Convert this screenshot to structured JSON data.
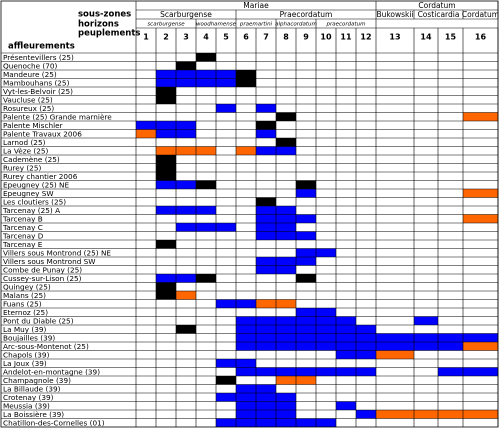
{
  "header": {
    "row_labels": [
      "sous-zones",
      "horizons",
      "peuplements"
    ],
    "column_label": "affleurements",
    "zones": [
      "Mariae",
      "Cordatum"
    ],
    "subzones": [
      "Scarburgense",
      "Praecordatum",
      "Bukowskii",
      "Costicardia",
      "Cordatum"
    ],
    "horizons": [
      "scarburgense",
      "woodhamense",
      "praemartini",
      "alphacordatum",
      "praecordatum"
    ],
    "columns": [
      "1",
      "2",
      "3",
      "4",
      "5",
      "6",
      "7",
      "8",
      "9",
      "10",
      "11",
      "12",
      "13",
      "14",
      "15",
      "16"
    ]
  },
  "table": {
    "rows": [
      {
        "label": "Présentevillers (25)",
        "cells": [
          null,
          null,
          null,
          "#000000",
          null,
          null,
          null,
          null,
          null,
          null,
          null,
          null,
          null,
          null,
          null,
          null
        ]
      },
      {
        "label": "Quenoche (70)",
        "cells": [
          null,
          null,
          "#000000",
          null,
          null,
          null,
          null,
          null,
          null,
          null,
          null,
          null,
          null,
          null,
          null,
          null
        ]
      },
      {
        "label": "Mandeure (25)",
        "cells": [
          null,
          "#0000ff",
          "#0000ff",
          "#0000ff",
          "#0000ff",
          "#000000",
          null,
          null,
          null,
          null,
          null,
          null,
          null,
          null,
          null,
          null
        ]
      },
      {
        "label": "Mambouhans (25)",
        "cells": [
          null,
          "#0000ff",
          "#0000ff",
          "#0000ff",
          "#0000ff",
          "#000000",
          null,
          null,
          null,
          null,
          null,
          null,
          null,
          null,
          null,
          null
        ]
      },
      {
        "label": "Vyt-les-Belvoir (25)",
        "cells": [
          null,
          "#000000",
          null,
          null,
          null,
          null,
          null,
          null,
          null,
          null,
          null,
          null,
          null,
          null,
          null,
          null
        ]
      },
      {
        "label": "Vaucluse (25)",
        "cells": [
          null,
          "#000000",
          null,
          null,
          null,
          null,
          null,
          null,
          null,
          null,
          null,
          null,
          null,
          null,
          null,
          null
        ]
      },
      {
        "label": "Rosureux (25)",
        "cells": [
          null,
          null,
          null,
          null,
          "#0000ff",
          null,
          "#0000ff",
          null,
          null,
          null,
          null,
          null,
          null,
          null,
          null,
          null
        ]
      },
      {
        "label": "Palente (25) Grande marnière",
        "cells": [
          null,
          null,
          null,
          null,
          null,
          null,
          null,
          "#000000",
          null,
          null,
          null,
          null,
          null,
          null,
          null,
          "#ff6600"
        ]
      },
      {
        "label": "Palente Mischler",
        "cells": [
          "#0000ff",
          "#0000ff",
          "#0000ff",
          null,
          null,
          null,
          "#000000",
          null,
          null,
          null,
          null,
          null,
          null,
          null,
          null,
          null
        ]
      },
      {
        "label": "Palente Travaux 2006",
        "cells": [
          "#ff6600",
          "#0000ff",
          "#0000ff",
          null,
          null,
          null,
          "#0000ff",
          null,
          null,
          null,
          null,
          null,
          null,
          null,
          null,
          null
        ]
      },
      {
        "label": "Larnod (25)",
        "cells": [
          null,
          null,
          null,
          null,
          null,
          null,
          null,
          "#000000",
          null,
          null,
          null,
          null,
          null,
          null,
          null,
          null
        ]
      },
      {
        "label": "La Vèze (25)",
        "cells": [
          null,
          "#ff6600",
          "#ff6600",
          "#ff6600",
          null,
          "#ff6600",
          "#0000ff",
          "#0000ff",
          null,
          null,
          null,
          null,
          null,
          null,
          null,
          null
        ]
      },
      {
        "label": "Cademène (25)",
        "cells": [
          null,
          "#000000",
          null,
          null,
          null,
          null,
          null,
          null,
          null,
          null,
          null,
          null,
          null,
          null,
          null,
          null
        ]
      },
      {
        "label": "Rurey (25)",
        "cells": [
          null,
          "#000000",
          null,
          null,
          null,
          null,
          null,
          null,
          null,
          null,
          null,
          null,
          null,
          null,
          null,
          null
        ]
      },
      {
        "label": "Rurey chantier 2006",
        "cells": [
          null,
          "#000000",
          null,
          null,
          null,
          null,
          null,
          null,
          null,
          null,
          null,
          null,
          null,
          null,
          null,
          null
        ]
      },
      {
        "label": "Epeugney (25) NE",
        "cells": [
          null,
          "#0000ff",
          "#0000ff",
          "#000000",
          null,
          null,
          null,
          null,
          "#000000",
          null,
          null,
          null,
          null,
          null,
          null,
          null
        ]
      },
      {
        "label": "Epeugney SW",
        "cells": [
          null,
          null,
          null,
          null,
          null,
          null,
          null,
          null,
          "#0000ff",
          null,
          null,
          null,
          null,
          null,
          null,
          "#ff6600"
        ]
      },
      {
        "label": "Les cloutiers (25)",
        "cells": [
          null,
          null,
          null,
          null,
          null,
          null,
          "#000000",
          null,
          null,
          null,
          null,
          null,
          null,
          null,
          null,
          null
        ]
      },
      {
        "label": "Tarcenay (25) A",
        "cells": [
          null,
          "#0000ff",
          "#0000ff",
          "#0000ff",
          null,
          null,
          "#0000ff",
          "#0000ff",
          null,
          null,
          null,
          null,
          null,
          null,
          null,
          null
        ]
      },
      {
        "label": "Tarcenay B",
        "cells": [
          null,
          null,
          null,
          null,
          null,
          null,
          "#0000ff",
          "#0000ff",
          "#0000ff",
          null,
          null,
          null,
          null,
          null,
          null,
          "#ff6600"
        ]
      },
      {
        "label": "Tarcenay C",
        "cells": [
          null,
          null,
          "#0000ff",
          "#0000ff",
          "#0000ff",
          null,
          "#0000ff",
          "#0000ff",
          null,
          null,
          null,
          null,
          null,
          null,
          null,
          null
        ]
      },
      {
        "label": "Tarcenay D",
        "cells": [
          null,
          null,
          null,
          null,
          null,
          null,
          "#0000ff",
          "#0000ff",
          "#0000ff",
          null,
          null,
          null,
          null,
          null,
          null,
          null
        ]
      },
      {
        "label": "Tarcenay E",
        "cells": [
          null,
          "#000000",
          null,
          null,
          null,
          null,
          null,
          null,
          null,
          null,
          null,
          null,
          null,
          null,
          null,
          null
        ]
      },
      {
        "label": "Villers sous Montrond (25) NE",
        "cells": [
          null,
          null,
          null,
          null,
          null,
          null,
          null,
          null,
          "#0000ff",
          "#0000ff",
          null,
          null,
          null,
          null,
          null,
          null
        ]
      },
      {
        "label": "Villers sous Montrond SW",
        "cells": [
          null,
          null,
          null,
          null,
          null,
          null,
          "#0000ff",
          "#0000ff",
          "#0000ff",
          null,
          null,
          null,
          null,
          null,
          null,
          null
        ]
      },
      {
        "label": "Combe de Punay (25)",
        "cells": [
          null,
          null,
          null,
          null,
          null,
          null,
          "#0000ff",
          "#0000ff",
          null,
          null,
          null,
          null,
          null,
          null,
          null,
          null
        ]
      },
      {
        "label": "Cussey-sur-Lison (25)",
        "cells": [
          null,
          "#0000ff",
          "#0000ff",
          "#000000",
          null,
          null,
          null,
          null,
          "#000000",
          null,
          null,
          null,
          null,
          null,
          null,
          null
        ]
      },
      {
        "label": "Quingey (25)",
        "cells": [
          null,
          "#000000",
          null,
          null,
          null,
          null,
          null,
          null,
          null,
          null,
          null,
          null,
          null,
          null,
          null,
          null
        ]
      },
      {
        "label": "Malans (25)",
        "cells": [
          null,
          "#000000",
          "#ff6600",
          null,
          null,
          null,
          null,
          null,
          null,
          null,
          null,
          null,
          null,
          null,
          null,
          null
        ]
      },
      {
        "label": "Fuans (25)",
        "cells": [
          null,
          null,
          null,
          null,
          "#0000ff",
          "#0000ff",
          "#ff6600",
          "#ff6600",
          null,
          null,
          null,
          null,
          null,
          null,
          null,
          null
        ]
      },
      {
        "label": "Eternoz (25)",
        "cells": [
          null,
          null,
          null,
          null,
          null,
          null,
          null,
          null,
          "#0000ff",
          "#0000ff",
          null,
          null,
          null,
          null,
          null,
          null
        ]
      },
      {
        "label": "Pont du Diable (25)",
        "cells": [
          null,
          null,
          null,
          null,
          null,
          "#0000ff",
          "#0000ff",
          "#0000ff",
          "#0000ff",
          "#0000ff",
          "#0000ff",
          null,
          null,
          "#0000ff",
          null,
          null
        ]
      },
      {
        "label": "La Muy (39)",
        "cells": [
          null,
          null,
          "#000000",
          null,
          null,
          "#0000ff",
          "#0000ff",
          "#0000ff",
          "#0000ff",
          "#0000ff",
          "#0000ff",
          "#0000ff",
          null,
          null,
          null,
          null
        ]
      },
      {
        "label": "Boujailles (39)",
        "cells": [
          null,
          null,
          null,
          null,
          null,
          "#0000ff",
          "#0000ff",
          "#0000ff",
          "#0000ff",
          "#0000ff",
          "#0000ff",
          "#0000ff",
          "#0000ff",
          "#0000ff",
          "#0000ff",
          "#0000ff"
        ]
      },
      {
        "label": "Arc-sous-Montenot (25)",
        "cells": [
          null,
          null,
          null,
          null,
          null,
          "#0000ff",
          "#0000ff",
          "#0000ff",
          "#0000ff",
          "#0000ff",
          "#0000ff",
          "#0000ff",
          "#0000ff",
          "#0000ff",
          "#0000ff",
          "#ff6600"
        ]
      },
      {
        "label": "Chapols (39)",
        "cells": [
          null,
          null,
          null,
          null,
          null,
          null,
          null,
          null,
          null,
          null,
          "#0000ff",
          "#0000ff",
          "#ff6600",
          null,
          null,
          null
        ]
      },
      {
        "label": "La Joux (39)",
        "cells": [
          null,
          null,
          null,
          null,
          "#0000ff",
          "#0000ff",
          null,
          null,
          null,
          null,
          null,
          null,
          null,
          null,
          null,
          null
        ]
      },
      {
        "label": "Andelot-en-montagne (39)",
        "cells": [
          null,
          null,
          null,
          null,
          null,
          "#0000ff",
          "#0000ff",
          "#0000ff",
          "#0000ff",
          "#0000ff",
          "#0000ff",
          "#0000ff",
          null,
          null,
          "#0000ff",
          "#0000ff"
        ]
      },
      {
        "label": "Champagnole (39)",
        "cells": [
          null,
          null,
          null,
          null,
          "#000000",
          null,
          null,
          "#ff6600",
          "#ff6600",
          null,
          null,
          null,
          null,
          null,
          null,
          null
        ]
      },
      {
        "label": "La Billaude (39)",
        "cells": [
          null,
          null,
          null,
          null,
          null,
          "#0000ff",
          "#0000ff",
          null,
          null,
          null,
          null,
          null,
          null,
          null,
          null,
          null
        ]
      },
      {
        "label": "Crotenay (39)",
        "cells": [
          null,
          null,
          null,
          null,
          "#0000ff",
          "#0000ff",
          "#0000ff",
          "#0000ff",
          null,
          null,
          null,
          null,
          null,
          null,
          null,
          null
        ]
      },
      {
        "label": "Meussia (39)",
        "cells": [
          null,
          null,
          null,
          null,
          null,
          "#0000ff",
          "#0000ff",
          "#0000ff",
          null,
          null,
          "#0000ff",
          null,
          null,
          null,
          null,
          null
        ]
      },
      {
        "label": "La Boissière (39)",
        "cells": [
          null,
          null,
          null,
          null,
          null,
          "#0000ff",
          "#0000ff",
          "#0000ff",
          null,
          null,
          null,
          "#0000ff",
          "#ff6600",
          "#ff6600",
          "#ff6600",
          "#ff6600"
        ]
      },
      {
        "label": "Chatillon-des-Cornelles (01)",
        "cells": [
          null,
          null,
          null,
          null,
          "#0000ff",
          "#0000ff",
          "#0000ff",
          "#0000ff",
          "#0000ff",
          "#0000ff",
          null,
          null,
          null,
          null,
          null,
          null
        ]
      }
    ]
  }
}
